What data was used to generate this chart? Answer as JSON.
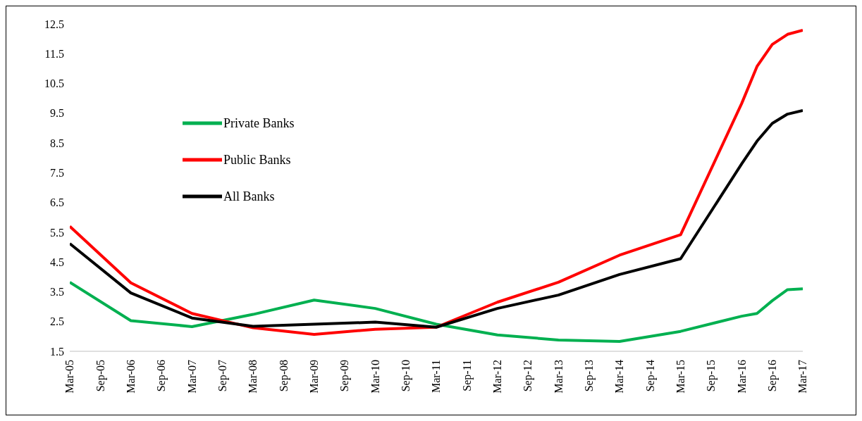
{
  "chart_data": {
    "type": "line",
    "xlim": [
      "2005-03",
      "2017-03"
    ],
    "xticks": [
      {
        "value": "2005-03",
        "label": "Mar-05"
      },
      {
        "value": "2005-09",
        "label": "Sep-05"
      },
      {
        "value": "2006-03",
        "label": "Mar-06"
      },
      {
        "value": "2006-09",
        "label": "Sep-06"
      },
      {
        "value": "2007-03",
        "label": "Mar-07"
      },
      {
        "value": "2007-09",
        "label": "Sep-07"
      },
      {
        "value": "2008-03",
        "label": "Mar-08"
      },
      {
        "value": "2008-09",
        "label": "Sep-08"
      },
      {
        "value": "2009-03",
        "label": "Mar-09"
      },
      {
        "value": "2009-09",
        "label": "Sep-09"
      },
      {
        "value": "2010-03",
        "label": "Mar-10"
      },
      {
        "value": "2010-09",
        "label": "Sep-10"
      },
      {
        "value": "2011-03",
        "label": "Mar-11"
      },
      {
        "value": "2011-09",
        "label": "Sep-11"
      },
      {
        "value": "2012-03",
        "label": "Mar-12"
      },
      {
        "value": "2012-09",
        "label": "Sep-12"
      },
      {
        "value": "2013-03",
        "label": "Mar-13"
      },
      {
        "value": "2013-09",
        "label": "Sep-13"
      },
      {
        "value": "2014-03",
        "label": "Mar-14"
      },
      {
        "value": "2014-09",
        "label": "Sep-14"
      },
      {
        "value": "2015-03",
        "label": "Mar-15"
      },
      {
        "value": "2015-09",
        "label": "Sep-15"
      },
      {
        "value": "2016-03",
        "label": "Mar-16"
      },
      {
        "value": "2016-09",
        "label": "Sep-16"
      },
      {
        "value": "2017-03",
        "label": "Mar-17"
      }
    ],
    "ylim": [
      1.5,
      12.5
    ],
    "yticks": [
      1.5,
      2.5,
      3.5,
      4.5,
      5.5,
      6.5,
      7.5,
      8.5,
      9.5,
      10.5,
      11.5,
      12.5
    ],
    "x": [
      "2005-03",
      "2006-03",
      "2007-03",
      "2008-03",
      "2009-03",
      "2010-03",
      "2011-03",
      "2012-03",
      "2013-03",
      "2014-03",
      "2015-03",
      "2016-03",
      "2016-06",
      "2016-09",
      "2016-12",
      "2017-03"
    ],
    "series": [
      {
        "name": "Private Banks",
        "color": "#00b050",
        "values": [
          3.82,
          2.53,
          2.33,
          2.74,
          3.22,
          2.94,
          2.41,
          2.05,
          1.88,
          1.83,
          2.17,
          2.68,
          2.77,
          3.2,
          3.57,
          3.6
        ]
      },
      {
        "name": "Public Banks",
        "color": "#ff0000",
        "values": [
          5.7,
          3.8,
          2.77,
          2.29,
          2.07,
          2.24,
          2.31,
          3.15,
          3.82,
          4.73,
          5.42,
          9.83,
          11.07,
          11.81,
          12.15,
          12.29
        ]
      },
      {
        "name": "All Banks",
        "color": "#000000",
        "values": [
          5.12,
          3.46,
          2.62,
          2.34,
          2.41,
          2.48,
          2.31,
          2.94,
          3.39,
          4.08,
          4.61,
          7.8,
          8.56,
          9.16,
          9.47,
          9.59
        ]
      }
    ],
    "legend": "left",
    "grid": false,
    "marker": "none",
    "line_style": "solid"
  }
}
